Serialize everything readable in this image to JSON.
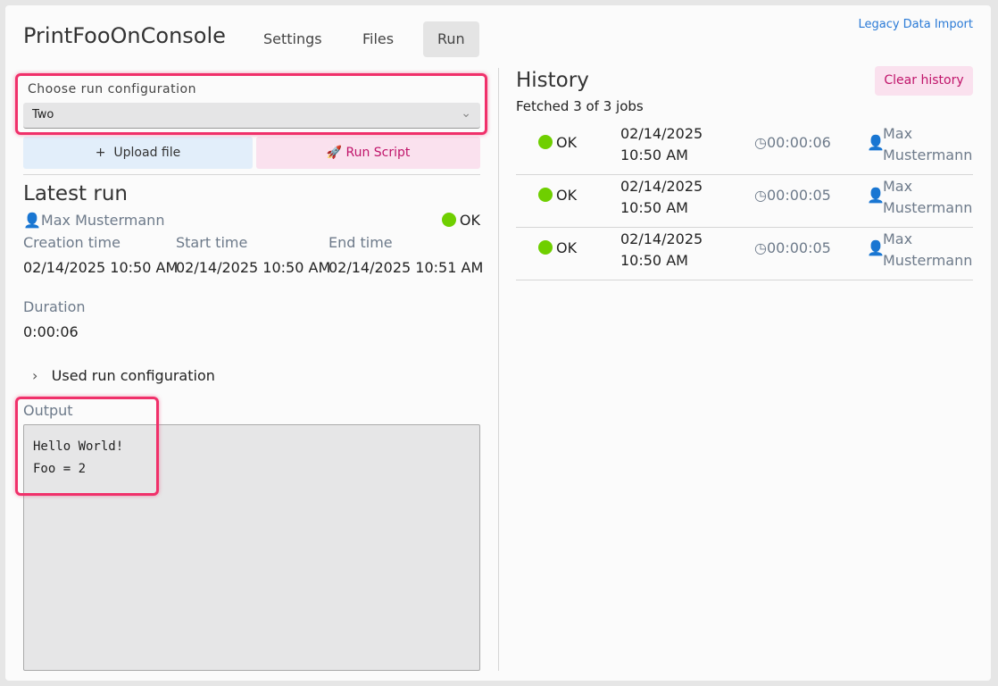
{
  "header": {
    "title": "PrintFooOnConsole",
    "tabs": [
      {
        "label": "Settings"
      },
      {
        "label": "Files"
      },
      {
        "label": "Run",
        "active": true
      }
    ],
    "legacy_link": "Legacy Data Import"
  },
  "config": {
    "label": "Choose run configuration",
    "value": "Two"
  },
  "actions": {
    "upload": "Upload file",
    "run": "Run Script"
  },
  "latest": {
    "title": "Latest run",
    "user": "Max Mustermann",
    "status": "OK",
    "creation_label": "Creation time",
    "creation": "02/14/2025 10:50 AM",
    "start_label": "Start time",
    "start": "02/14/2025 10:50 AM",
    "end_label": "End time",
    "end": "02/14/2025 10:51 AM",
    "duration_label": "Duration",
    "duration": "0:00:06",
    "used_config": "Used run configuration",
    "output_label": "Output",
    "output": "Hello World!\nFoo = 2"
  },
  "history": {
    "title": "History",
    "clear": "Clear history",
    "fetched": "Fetched 3 of 3 jobs",
    "rows": [
      {
        "status": "OK",
        "time": "02/14/2025 10:50 AM",
        "duration": "00:00:06",
        "user": "Max Mustermann"
      },
      {
        "status": "OK",
        "time": "02/14/2025 10:50 AM",
        "duration": "00:00:05",
        "user": "Max Mustermann"
      },
      {
        "status": "OK",
        "time": "02/14/2025 10:50 AM",
        "duration": "00:00:05",
        "user": "Max Mustermann"
      }
    ]
  },
  "colors": {
    "accent": "#c0146a",
    "ok": "#6fcf00",
    "link": "#2a7ad6",
    "annotation": "#f0306a"
  }
}
